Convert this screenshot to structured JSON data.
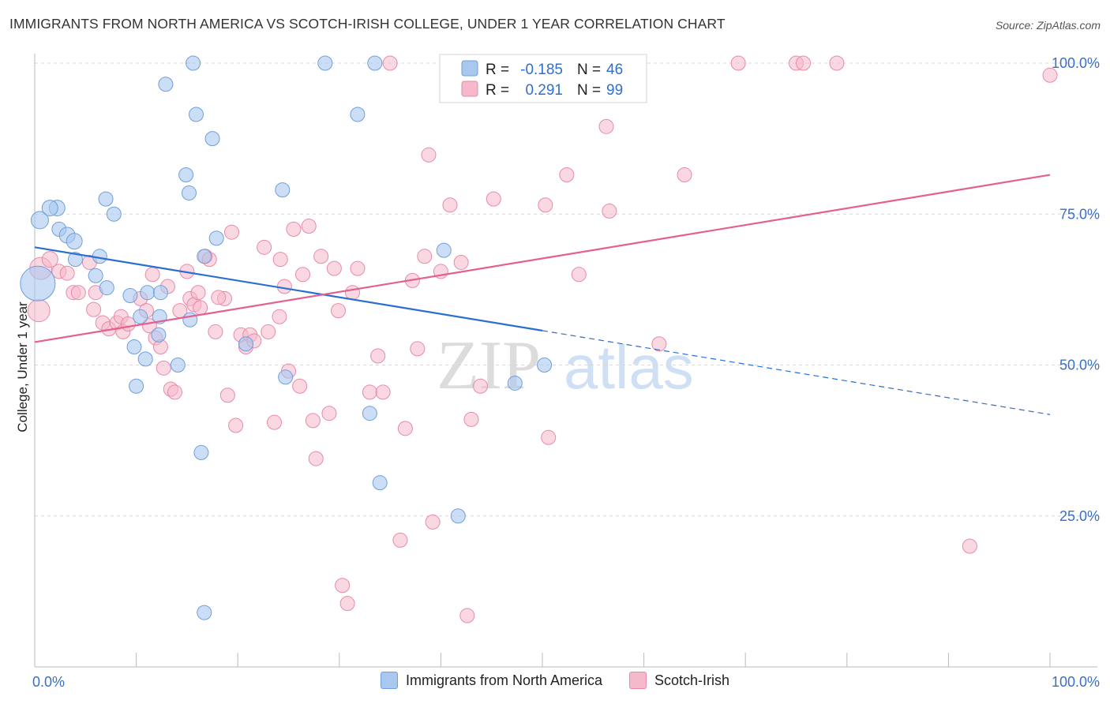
{
  "header": {
    "title": "IMMIGRANTS FROM NORTH AMERICA VS SCOTCH-IRISH COLLEGE, UNDER 1 YEAR CORRELATION CHART",
    "source": "Source: ZipAtlas.com"
  },
  "watermark": {
    "zip": "ZIP",
    "atlas": "atlas"
  },
  "stats_legend": {
    "rows": [
      {
        "r_label": "R =",
        "r_value": "-0.185",
        "n_label": "N =",
        "n_value": "46"
      },
      {
        "r_label": "R =",
        "r_value": "0.291",
        "n_label": "N =",
        "n_value": "99"
      }
    ]
  },
  "bottom_legend": {
    "items": [
      {
        "label": "Immigrants from North America"
      },
      {
        "label": "Scotch-Irish"
      }
    ]
  },
  "colors": {
    "blue_fill": "#a9c8f0",
    "blue_stroke": "#6f9fdc",
    "blue_line": "#2a6fd0",
    "pink_fill": "#f6b8cb",
    "pink_stroke": "#e88aa8",
    "pink_line": "#e4608e",
    "axis_text": "#3a6fc4",
    "grid": "#d8d8d8"
  },
  "chart_data": {
    "type": "scatter",
    "title": "IMMIGRANTS FROM NORTH AMERICA VS SCOTCH-IRISH COLLEGE, UNDER 1 YEAR CORRELATION CHART",
    "xlabel": "",
    "ylabel": "College, Under 1 year",
    "xlim": [
      0,
      100
    ],
    "ylim": [
      0,
      100
    ],
    "x_tick_labels": [
      "0.0%",
      "100.0%"
    ],
    "y_ticks": [
      25,
      50,
      75,
      100
    ],
    "y_tick_labels": [
      "25.0%",
      "50.0%",
      "75.0%",
      "100.0%"
    ],
    "grid": "horizontal dashed",
    "legend": "top-center",
    "series": [
      {
        "name": "Immigrants from North America",
        "r": -0.185,
        "n": 46,
        "trend": {
          "x_start": 0,
          "y_start": 69.5,
          "x_solid_end": 50,
          "y_solid_end": 55.7,
          "x_end": 100,
          "y_end": 41.8
        },
        "points": [
          [
            0.5,
            74,
            11
          ],
          [
            0.3,
            63.5,
            22
          ],
          [
            2.2,
            76,
            10
          ],
          [
            1.5,
            76,
            10
          ],
          [
            2.4,
            72.5,
            9
          ],
          [
            3.2,
            71.5,
            10
          ],
          [
            3.9,
            70.5,
            10
          ],
          [
            4,
            67.5,
            9
          ],
          [
            6.4,
            68,
            9
          ],
          [
            6,
            64.8,
            9
          ],
          [
            7.1,
            62.8,
            9
          ],
          [
            9.4,
            61.5,
            9
          ],
          [
            7,
            77.5,
            9
          ],
          [
            7.8,
            75,
            9
          ],
          [
            9.8,
            53,
            9
          ],
          [
            10.4,
            58,
            9
          ],
          [
            10,
            46.5,
            9
          ],
          [
            11.1,
            62,
            9
          ],
          [
            12.2,
            55,
            9
          ],
          [
            10.9,
            51,
            9
          ],
          [
            12.4,
            62,
            9
          ],
          [
            12.3,
            58,
            9
          ],
          [
            12.9,
            96.5,
            9
          ],
          [
            14.1,
            50,
            9
          ],
          [
            15.3,
            57.5,
            9
          ],
          [
            14.9,
            81.5,
            9
          ],
          [
            15.2,
            78.5,
            9
          ],
          [
            15.6,
            100,
            9
          ],
          [
            15.9,
            91.5,
            9
          ],
          [
            17.5,
            87.5,
            9
          ],
          [
            17.9,
            71,
            9
          ],
          [
            16.4,
            35.5,
            9
          ],
          [
            16.7,
            9,
            9
          ],
          [
            16.7,
            68,
            9
          ],
          [
            20.8,
            53.5,
            9
          ],
          [
            24.4,
            79,
            9
          ],
          [
            24.7,
            48,
            9
          ],
          [
            28.6,
            100,
            9
          ],
          [
            31.8,
            91.5,
            9
          ],
          [
            33.5,
            100,
            9
          ],
          [
            33,
            42,
            9
          ],
          [
            34,
            30.5,
            9
          ],
          [
            40.3,
            69,
            9
          ],
          [
            41.7,
            25,
            9
          ],
          [
            47.3,
            47,
            9
          ],
          [
            50.2,
            50,
            9
          ]
        ]
      },
      {
        "name": "Scotch-Irish",
        "r": 0.291,
        "n": 99,
        "trend": {
          "x_start": 0,
          "y_start": 53.8,
          "x_end": 100,
          "y_end": 81.5
        },
        "points": [
          [
            0.4,
            59,
            14
          ],
          [
            0.6,
            66,
            14
          ],
          [
            1.5,
            67.5,
            10
          ],
          [
            2.4,
            65.5,
            9
          ],
          [
            3.2,
            65.2,
            9
          ],
          [
            3.8,
            62,
            9
          ],
          [
            4.3,
            62,
            9
          ],
          [
            5.4,
            67,
            9
          ],
          [
            5.8,
            59.2,
            9
          ],
          [
            6,
            62,
            9
          ],
          [
            6.7,
            57,
            9
          ],
          [
            7.3,
            56,
            9
          ],
          [
            8.1,
            57,
            9
          ],
          [
            8.5,
            58,
            9
          ],
          [
            8.7,
            55.5,
            9
          ],
          [
            9.2,
            56.8,
            9
          ],
          [
            10.4,
            61,
            9
          ],
          [
            11,
            59,
            9
          ],
          [
            11.3,
            56.5,
            9
          ],
          [
            11.6,
            65,
            9
          ],
          [
            11.9,
            54.5,
            9
          ],
          [
            12.4,
            53,
            9
          ],
          [
            12.7,
            49.5,
            9
          ],
          [
            13.1,
            63,
            9
          ],
          [
            13.4,
            46,
            9
          ],
          [
            13.8,
            45.5,
            9
          ],
          [
            14.3,
            59,
            9
          ],
          [
            15,
            65.5,
            9
          ],
          [
            15.3,
            61,
            9
          ],
          [
            15.7,
            60,
            9
          ],
          [
            16.1,
            62,
            9
          ],
          [
            16.8,
            68,
            9
          ],
          [
            17.2,
            67.5,
            9
          ],
          [
            17.8,
            55.5,
            9
          ],
          [
            18.7,
            61,
            9
          ],
          [
            19,
            45,
            9
          ],
          [
            19.4,
            72,
            9
          ],
          [
            19.8,
            40,
            9
          ],
          [
            20.3,
            55,
            9
          ],
          [
            20.8,
            53,
            9
          ],
          [
            21.2,
            55,
            9
          ],
          [
            21.6,
            54,
            9
          ],
          [
            22.6,
            69.5,
            9
          ],
          [
            23,
            55.5,
            9
          ],
          [
            23.6,
            40.5,
            9
          ],
          [
            24.2,
            67.5,
            9
          ],
          [
            24.6,
            63,
            9
          ],
          [
            25,
            49,
            9
          ],
          [
            25.5,
            72.5,
            9
          ],
          [
            26.4,
            65,
            9
          ],
          [
            27,
            73,
            9
          ],
          [
            27.4,
            40.8,
            9
          ],
          [
            27.7,
            34.5,
            9
          ],
          [
            28.2,
            68,
            9
          ],
          [
            29,
            42,
            9
          ],
          [
            29.5,
            66,
            9
          ],
          [
            29.9,
            59,
            9
          ],
          [
            30.3,
            13.5,
            9
          ],
          [
            30.8,
            10.5,
            9
          ],
          [
            31.3,
            62,
            9
          ],
          [
            33,
            45.5,
            9
          ],
          [
            33.8,
            51.5,
            9
          ],
          [
            34.3,
            45.5,
            9
          ],
          [
            35,
            100,
            9
          ],
          [
            36,
            21,
            9
          ],
          [
            36.5,
            39.5,
            9
          ],
          [
            37.2,
            64,
            9
          ],
          [
            37.7,
            52.7,
            9
          ],
          [
            38.4,
            68,
            9
          ],
          [
            38.8,
            84.8,
            9
          ],
          [
            39.2,
            24,
            9
          ],
          [
            40,
            65.5,
            9
          ],
          [
            40.9,
            76.5,
            9
          ],
          [
            42,
            67,
            9
          ],
          [
            42.6,
            8.5,
            9
          ],
          [
            43,
            41,
            9
          ],
          [
            43.9,
            46.5,
            9
          ],
          [
            45.2,
            77.5,
            9
          ],
          [
            48.4,
            100,
            9
          ],
          [
            50,
            100,
            9
          ],
          [
            50.3,
            76.5,
            9
          ],
          [
            50.6,
            38,
            9
          ],
          [
            52.4,
            81.5,
            9
          ],
          [
            53.6,
            65,
            9
          ],
          [
            56.3,
            89.5,
            9
          ],
          [
            56.6,
            75.5,
            9
          ],
          [
            61.5,
            53.5,
            9
          ],
          [
            64,
            81.5,
            9
          ],
          [
            69.3,
            100,
            9
          ],
          [
            75,
            100,
            9
          ],
          [
            75.7,
            100,
            9
          ],
          [
            79,
            100,
            9
          ],
          [
            92.1,
            20,
            9
          ],
          [
            100,
            98,
            9
          ],
          [
            31.8,
            66,
            9
          ],
          [
            26.1,
            46.5,
            9
          ],
          [
            16.3,
            59.5,
            9
          ],
          [
            24.1,
            58,
            9
          ],
          [
            18.1,
            61.2,
            9
          ]
        ]
      }
    ]
  }
}
